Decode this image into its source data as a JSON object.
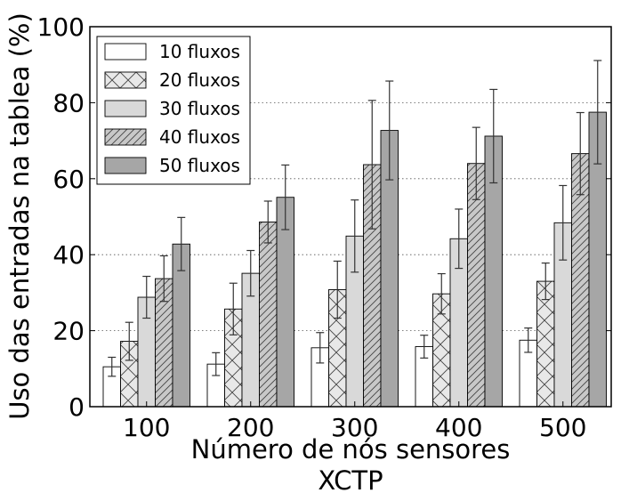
{
  "chart_data": {
    "type": "bar",
    "title": "",
    "xlabel": "Número de nós sensores",
    "xlabel2": "XCTP",
    "ylabel": "Uso das entradas na tablea (%)",
    "ylim": [
      0,
      100
    ],
    "yticks": [
      "0",
      "20",
      "40",
      "60",
      "80",
      "100"
    ],
    "grid": true,
    "legend_position": "top-left",
    "categories": [
      "100",
      "200",
      "300",
      "400",
      "500"
    ],
    "series": [
      {
        "name": "10 fluxos",
        "pattern": "none",
        "color": "#ffffff",
        "values": [
          10.5,
          11.2,
          15.5,
          15.8,
          17.5
        ],
        "errors": [
          2.5,
          3.0,
          4.0,
          3.0,
          3.2
        ]
      },
      {
        "name": "20 fluxos",
        "pattern": "cross",
        "color": "#e8e8e8",
        "values": [
          17.2,
          25.7,
          30.8,
          29.7,
          33.0
        ],
        "errors": [
          5.0,
          6.8,
          7.5,
          5.3,
          4.8
        ]
      },
      {
        "name": "30 fluxos",
        "pattern": "none",
        "color": "#d9d9d9",
        "values": [
          28.8,
          35.1,
          44.9,
          44.2,
          48.4
        ],
        "errors": [
          5.5,
          6.0,
          9.5,
          7.8,
          9.8
        ]
      },
      {
        "name": "40 fluxos",
        "pattern": "diagonal",
        "color": "#c8c8c8",
        "values": [
          33.7,
          48.6,
          63.7,
          64.0,
          66.6
        ],
        "errors": [
          6.0,
          5.5,
          16.9,
          9.5,
          10.8
        ]
      },
      {
        "name": "50 fluxos",
        "pattern": "none",
        "color": "#a6a6a6",
        "values": [
          42.8,
          55.1,
          72.7,
          71.2,
          77.5
        ],
        "errors": [
          7.0,
          8.5,
          13.0,
          12.3,
          13.6
        ]
      }
    ]
  }
}
